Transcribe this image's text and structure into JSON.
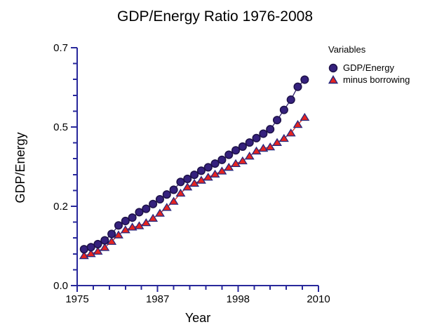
{
  "chart_data": {
    "type": "line",
    "title": "GDP/Energy Ratio 1976-2008",
    "xlabel": "Year",
    "ylabel": "GDP/Energy",
    "xlim": [
      1975,
      2010
    ],
    "ylim": [
      0,
      0.7
    ],
    "grid": false,
    "x_ticks": {
      "values": [
        1975,
        1986.6667,
        1998.3333,
        2010
      ],
      "labels": [
        "1975",
        "1987",
        "1998",
        "2010"
      ],
      "minor_divisions": 5
    },
    "y_ticks": {
      "values": [
        0,
        0.23333,
        0.46667,
        0.7
      ],
      "labels": [
        "0.0",
        "0.2",
        "0.5",
        "0.7"
      ],
      "minor_divisions": 5
    },
    "legend": {
      "title": "Variables",
      "position": "outside-top-right"
    },
    "x": [
      1976,
      1977,
      1978,
      1979,
      1980,
      1981,
      1982,
      1983,
      1984,
      1985,
      1986,
      1987,
      1988,
      1989,
      1990,
      1991,
      1992,
      1993,
      1994,
      1995,
      1996,
      1997,
      1998,
      1999,
      2000,
      2001,
      2002,
      2003,
      2004,
      2005,
      2006,
      2007,
      2008
    ],
    "series": [
      {
        "name": "GDP/Energy",
        "marker": "circle",
        "marker_fill": "#35217d",
        "marker_stroke": "#1d1148",
        "line_color": "#2c1b69",
        "values": [
          0.107,
          0.113,
          0.122,
          0.133,
          0.152,
          0.177,
          0.19,
          0.2,
          0.216,
          0.226,
          0.24,
          0.254,
          0.268,
          0.282,
          0.305,
          0.314,
          0.326,
          0.338,
          0.348,
          0.359,
          0.37,
          0.385,
          0.398,
          0.409,
          0.421,
          0.434,
          0.447,
          0.46,
          0.487,
          0.517,
          0.547,
          0.585,
          0.606
        ]
      },
      {
        "name": "minus borrowing",
        "marker": "triangle",
        "marker_fill": "#e62420",
        "marker_stroke": "#28287d",
        "line_color": "#dd2b22",
        "values": [
          0.088,
          0.094,
          0.101,
          0.112,
          0.13,
          0.149,
          0.164,
          0.172,
          0.176,
          0.185,
          0.198,
          0.213,
          0.23,
          0.248,
          0.272,
          0.29,
          0.301,
          0.31,
          0.319,
          0.328,
          0.337,
          0.348,
          0.359,
          0.367,
          0.381,
          0.396,
          0.404,
          0.408,
          0.421,
          0.433,
          0.449,
          0.474,
          0.495
        ]
      }
    ],
    "colors": {
      "axis": "#28289b",
      "text": "#000000",
      "background": "#ffffff"
    }
  }
}
